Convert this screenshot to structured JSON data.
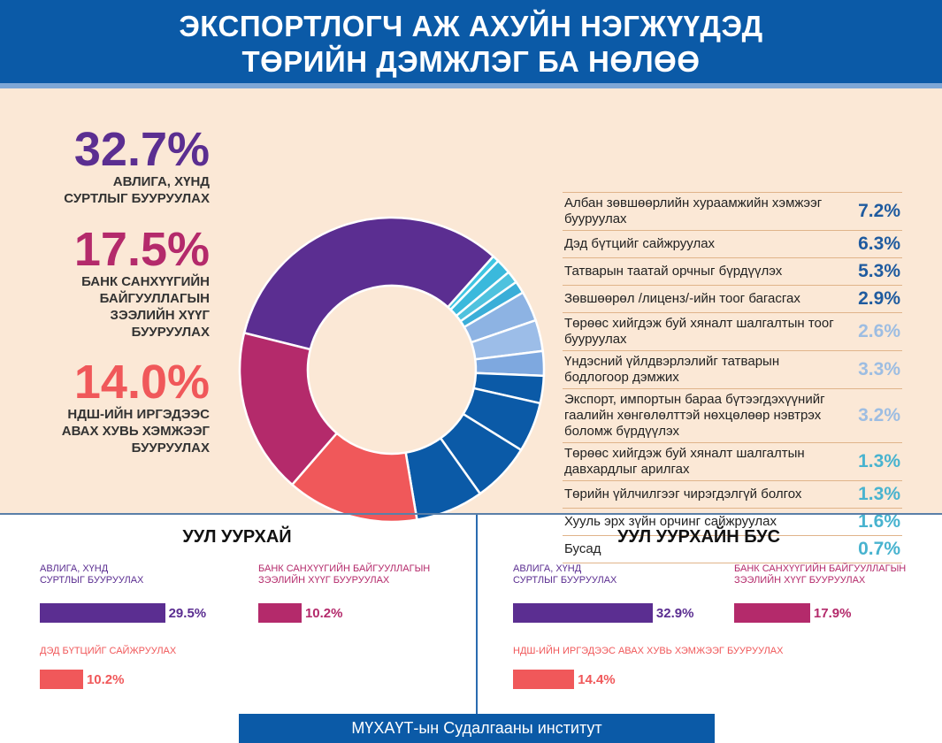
{
  "header": {
    "line1": "ЭКСПОРТЛОГЧ АЖ АХУЙН НЭГЖҮҮДЭД",
    "line2": "ТӨРИЙН ДЭМЖЛЭГ БА НӨЛӨӨ"
  },
  "highlights": [
    {
      "value": "32.7%",
      "label": [
        "АВЛИГА, ХҮНД",
        "СУРТЛЫГ БУУРУУЛАХ"
      ],
      "color": "#5b2e91"
    },
    {
      "value": "17.5%",
      "label": [
        "БАНК САНХҮҮГИЙН",
        "БАЙГУУЛЛАГЫН",
        "ЗЭЭЛИЙН ХҮҮГ",
        "БУУРУУЛАХ"
      ],
      "color": "#b42a6b"
    },
    {
      "value": "14.0%",
      "label": [
        "НДШ-ИЙН ИРГЭДЭЭС",
        "АВАХ ХУВЬ ХЭМЖЭЭГ",
        "БУУРУУЛАХ"
      ],
      "color": "#f0585a"
    }
  ],
  "chart_data": {
    "type": "pie",
    "donut": true,
    "slices": [
      {
        "label": "Авлига, хүнд суртлыг бууруулах",
        "value": 32.7,
        "color": "#5b2e91"
      },
      {
        "label": "Бусад",
        "value": 0.7,
        "color": "#3fc6e2"
      },
      {
        "label": "Хууль эрх зүйн орчинг сайжруулах",
        "value": 1.6,
        "color": "#3ab9dc"
      },
      {
        "label": "Төрийн үйлчилгээг чирэгдэлгүй болгох",
        "value": 1.3,
        "color": "#4fc2de"
      },
      {
        "label": "Төрөөс хийгдэж буй хяналт шалгалтын давхардлыг арилгах",
        "value": 1.3,
        "color": "#3aaed8"
      },
      {
        "label": "Экспорт, импортын бараа бүтээгдэхүүнийг гаалийн хөнгөлөлттэй нөхцөлөөр нэвтрэх боломж бүрдүүлэх",
        "value": 3.2,
        "color": "#8db3e3"
      },
      {
        "label": "Үндэсний үйлдвэрлэлийг татварын бодлогоор дэмжих",
        "value": 3.3,
        "color": "#9cbde8"
      },
      {
        "label": "Төрөөс хийгдэж буй хяналт шалгалтын тоог бууруулах",
        "value": 2.6,
        "color": "#7ea8df"
      },
      {
        "label": "Зөвшөөрөл /лиценз/-ийн тоог багасгах",
        "value": 2.9,
        "color": "#0b5aa7"
      },
      {
        "label": "Татварын таатай орчныг бүрдүүлэх",
        "value": 5.3,
        "color": "#0b5aa7"
      },
      {
        "label": "Дэд бүтцийг сайжруулах",
        "value": 6.3,
        "color": "#0b5aa7"
      },
      {
        "label": "Албан зөвшөөрлийн хураамжийн хэмжээг бууруулах",
        "value": 7.2,
        "color": "#0b5aa7"
      },
      {
        "label": "НДШ-ийн иргэдээс авах хувь хэмжээг бууруулах",
        "value": 14.0,
        "color": "#f0585a"
      },
      {
        "label": "Банк санхүүгийн байгууллагын зээлийн хүүг бууруулах",
        "value": 17.5,
        "color": "#b42a6b"
      }
    ]
  },
  "table": [
    {
      "text": "Албан зөвшөөрлийн хураамжийн хэмжээг бууруулах",
      "value": "7.2%",
      "color": "#1f5b9f"
    },
    {
      "text": "Дэд бүтцийг сайжруулах",
      "value": "6.3%",
      "color": "#1f5b9f"
    },
    {
      "text": "Татварын таатай орчныг бүрдүүлэх",
      "value": "5.3%",
      "color": "#1f5b9f"
    },
    {
      "text": "Зөвшөөрөл /лиценз/-ийн тоог багасгах",
      "value": "2.9%",
      "color": "#1f5b9f"
    },
    {
      "text": "Төрөөс хийгдэж буй хяналт шалгалтын тоог бууруулах",
      "value": "2.6%",
      "color": "#9dbde2"
    },
    {
      "text": "Үндэсний үйлдвэрлэлийг татварын бодлогоор дэмжих",
      "value": "3.3%",
      "color": "#9dbde2"
    },
    {
      "text": "Экспорт, импортын бараа бүтээгдэхүүнийг гаалийн хөнгөлөлттэй нөхцөлөөр нэвтрэх боломж бүрдүүлэх",
      "value": "3.2%",
      "color": "#9dbde2"
    },
    {
      "text": "Төрөөс хийгдэж буй хяналт шалгалтын давхардлыг арилгах",
      "value": "1.3%",
      "color": "#48b3cf"
    },
    {
      "text": "Төрийн үйлчилгээг чирэгдэлгүй болгох",
      "value": "1.3%",
      "color": "#48b3cf"
    },
    {
      "text": "Хууль эрх зүйн орчинг сайжруулах",
      "value": "1.6%",
      "color": "#48b3cf"
    },
    {
      "text": "Бусад",
      "value": "0.7%",
      "color": "#48b3cf"
    }
  ],
  "mining": {
    "title": "УУЛ УУРХАЙ",
    "items": [
      {
        "label": [
          "АВЛИГА, ХҮНД",
          "СУРТЛЫГ БУУРУУЛАХ"
        ],
        "value": 29.5,
        "text": "29.5%",
        "color": "#5b2e91"
      },
      {
        "label": [
          "БАНК САНХҮҮГИЙН БАЙГУУЛЛАГЫН",
          "ЗЭЭЛИЙН ХҮҮГ БУУРУУЛАХ"
        ],
        "value": 10.2,
        "text": "10.2%",
        "color": "#b42a6b"
      },
      {
        "label": [
          "ДЭД БҮТЦИЙГ САЙЖРУУЛАХ"
        ],
        "value": 10.2,
        "text": "10.2%",
        "color": "#f0585a"
      }
    ]
  },
  "nonmining": {
    "title": "УУЛ УУРХАЙН БУС",
    "items": [
      {
        "label": [
          "АВЛИГА, ХҮНД",
          "СУРТЛЫГ БУУРУУЛАХ"
        ],
        "value": 32.9,
        "text": "32.9%",
        "color": "#5b2e91"
      },
      {
        "label": [
          "БАНК САНХҮҮГИЙН БАЙГУУЛЛАГЫН",
          "ЗЭЭЛИЙН ХҮҮГ БУУРУУЛАХ"
        ],
        "value": 17.9,
        "text": "17.9%",
        "color": "#b42a6b"
      },
      {
        "label": [
          "НДШ-ИЙН ИРГЭДЭЭС АВАХ ХУВЬ ХЭМЖЭЭГ БУУРУУЛАХ"
        ],
        "value": 14.4,
        "text": "14.4%",
        "color": "#f0585a"
      }
    ]
  },
  "footer": "МҮХАҮТ-ын Судалгааны институт"
}
